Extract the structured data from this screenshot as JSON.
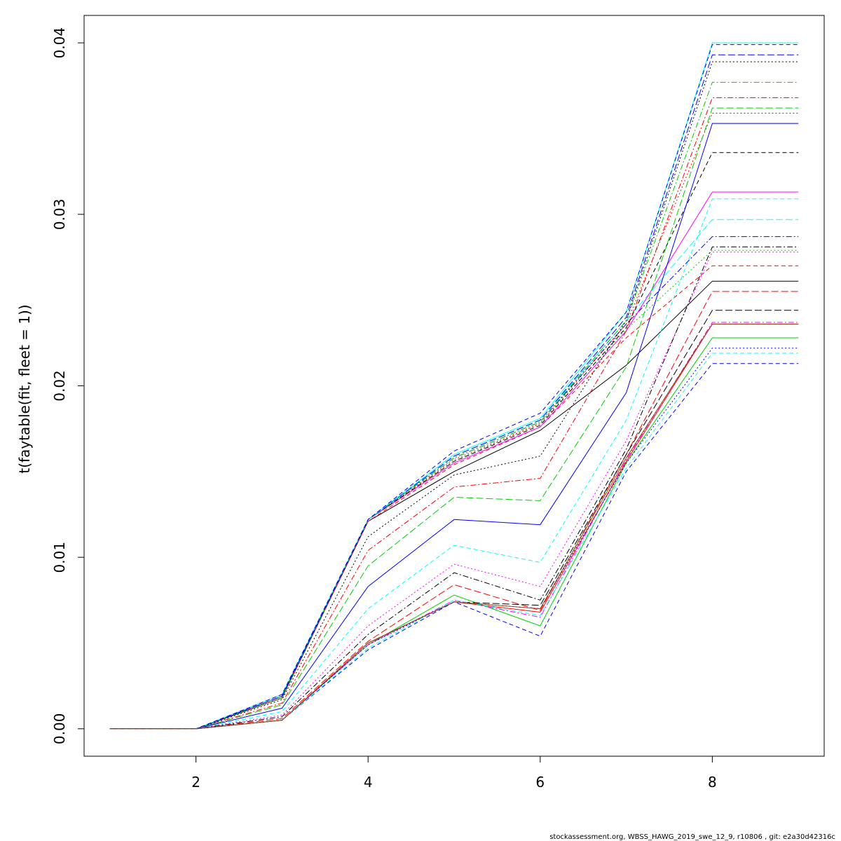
{
  "chart_data": {
    "type": "line",
    "ylabel": "t(faytable(fit, fleet = 1))",
    "xlabel": "",
    "xlim": [
      0.7,
      9.3
    ],
    "ylim": [
      -0.0016,
      0.0416
    ],
    "x_ticks": [
      2,
      4,
      6,
      8
    ],
    "x_tick_labels": [
      "2",
      "4",
      "6",
      "8"
    ],
    "y_ticks": [
      0.0,
      0.01,
      0.02,
      0.03,
      0.04
    ],
    "y_tick_labels": [
      "0.00",
      "0.01",
      "0.02",
      "0.03",
      "0.04"
    ],
    "grid": false,
    "x": [
      1,
      2,
      3,
      4,
      5,
      6,
      7,
      8,
      9
    ],
    "series": [
      {
        "color": "#000000",
        "dash": "solid",
        "values": [
          0,
          0,
          0.0018,
          0.0121,
          0.015,
          0.0174,
          0.0212,
          0.0261,
          0.0261
        ]
      },
      {
        "color": "#ff0000",
        "dash": "6,4",
        "values": [
          0,
          0,
          0.0018,
          0.0121,
          0.0154,
          0.0176,
          0.0228,
          0.027,
          0.027
        ]
      },
      {
        "color": "#00cd00",
        "dash": "2,3",
        "values": [
          0,
          0,
          0.0018,
          0.0122,
          0.0156,
          0.0178,
          0.0233,
          0.0279,
          0.0279
        ]
      },
      {
        "color": "#0000ff",
        "dash": "2,3,8,3",
        "values": [
          0,
          0,
          0.0019,
          0.0122,
          0.0158,
          0.0179,
          0.0236,
          0.0287,
          0.0287
        ]
      },
      {
        "color": "#00ffff",
        "dash": "10,4",
        "values": [
          0,
          0,
          0.0019,
          0.0122,
          0.0159,
          0.018,
          0.0238,
          0.0297,
          0.0297
        ]
      },
      {
        "color": "#ff00ff",
        "dash": "solid",
        "values": [
          0,
          0,
          0.0019,
          0.0122,
          0.0155,
          0.0176,
          0.0232,
          0.0313,
          0.0313
        ]
      },
      {
        "color": "#000000",
        "dash": "6,4",
        "values": [
          0,
          0,
          0.0019,
          0.0122,
          0.0156,
          0.0177,
          0.0234,
          0.0336,
          0.0336
        ]
      },
      {
        "color": "#ff0000",
        "dash": "2,3",
        "values": [
          0,
          0,
          0.0019,
          0.0122,
          0.0157,
          0.0178,
          0.0236,
          0.0359,
          0.0359
        ]
      },
      {
        "color": "#00cd00",
        "dash": "2,3,8,3",
        "values": [
          0,
          0,
          0.0019,
          0.0122,
          0.0158,
          0.0179,
          0.0238,
          0.0377,
          0.0377
        ]
      },
      {
        "color": "#0000ff",
        "dash": "10,4",
        "values": [
          0,
          0,
          0.0019,
          0.0122,
          0.0159,
          0.018,
          0.024,
          0.0393,
          0.0393
        ]
      },
      {
        "color": "#00ffff",
        "dash": "solid",
        "values": [
          0,
          0,
          0.002,
          0.0122,
          0.016,
          0.0181,
          0.0243,
          0.04,
          0.04
        ]
      },
      {
        "color": "#0000ff",
        "dash": "6,4",
        "values": [
          0,
          0,
          0.002,
          0.0122,
          0.0162,
          0.0184,
          0.0243,
          0.0399,
          0.0399
        ]
      },
      {
        "color": "#000000",
        "dash": "2,3",
        "values": [
          0,
          0,
          0.0017,
          0.0112,
          0.0148,
          0.0159,
          0.0238,
          0.0389,
          0.0389
        ]
      },
      {
        "color": "#ff0000",
        "dash": "2,3,8,3",
        "values": [
          0,
          0,
          0.0015,
          0.0104,
          0.0141,
          0.0146,
          0.0232,
          0.0368,
          0.0368
        ]
      },
      {
        "color": "#00cd00",
        "dash": "10,4",
        "values": [
          0,
          0,
          0.0014,
          0.0095,
          0.0135,
          0.0133,
          0.0211,
          0.0362,
          0.0362
        ]
      },
      {
        "color": "#0000ff",
        "dash": "solid",
        "values": [
          0,
          0,
          0.0012,
          0.0083,
          0.0122,
          0.0119,
          0.0196,
          0.0353,
          0.0353
        ]
      },
      {
        "color": "#00ffff",
        "dash": "6,4",
        "values": [
          0,
          0,
          0.001,
          0.007,
          0.0107,
          0.0097,
          0.018,
          0.0309,
          0.0309
        ]
      },
      {
        "color": "#ff00ff",
        "dash": "2,3",
        "values": [
          0,
          0,
          0.0008,
          0.006,
          0.0096,
          0.0083,
          0.0168,
          0.0278,
          0.0278
        ]
      },
      {
        "color": "#000000",
        "dash": "2,3,8,3",
        "values": [
          0,
          0,
          0.0007,
          0.0055,
          0.0091,
          0.0075,
          0.0163,
          0.0281,
          0.0281
        ]
      },
      {
        "color": "#ff0000",
        "dash": "10,4",
        "values": [
          0,
          0,
          0.0006,
          0.0051,
          0.0084,
          0.0069,
          0.016,
          0.0255,
          0.0255
        ]
      },
      {
        "color": "#00cd00",
        "dash": "solid",
        "values": [
          0,
          0,
          0.0005,
          0.0049,
          0.0078,
          0.006,
          0.0155,
          0.0228,
          0.0228
        ]
      },
      {
        "color": "#0000ff",
        "dash": "6,4",
        "values": [
          0,
          0,
          0.0005,
          0.0046,
          0.0074,
          0.0054,
          0.015,
          0.0213,
          0.0213
        ]
      },
      {
        "color": "#000000",
        "dash": "10,4",
        "values": [
          0,
          0,
          0.0005,
          0.005,
          0.0074,
          0.0072,
          0.016,
          0.0244,
          0.0244
        ]
      },
      {
        "color": "#ff00ff",
        "dash": "2,3,8,3",
        "values": [
          0,
          0,
          0.0005,
          0.0049,
          0.0075,
          0.0065,
          0.0157,
          0.0237,
          0.0237
        ]
      },
      {
        "color": "#ff0000",
        "dash": "solid",
        "values": [
          0,
          0,
          0.0005,
          0.005,
          0.0074,
          0.0068,
          0.0156,
          0.0236,
          0.0236
        ]
      },
      {
        "color": "#0000ff",
        "dash": "2,3",
        "values": [
          0,
          0,
          0.0005,
          0.0049,
          0.0074,
          0.007,
          0.0155,
          0.0222,
          0.0222
        ]
      },
      {
        "color": "#00ffff",
        "dash": "6,4",
        "values": [
          0,
          0,
          0.0005,
          0.0047,
          0.0075,
          0.0066,
          0.0152,
          0.0219,
          0.0219
        ]
      },
      {
        "color": "#8b4513",
        "dash": "solid",
        "values": [
          0,
          0,
          0.0005,
          0.005,
          0.0074,
          0.007,
          0.0158,
          0.0236,
          0.0236
        ]
      }
    ]
  },
  "footer": "stockassessment.org, WBSS_HAWG_2019_swe_12_9, r10806 , git: e2a30d42316c"
}
